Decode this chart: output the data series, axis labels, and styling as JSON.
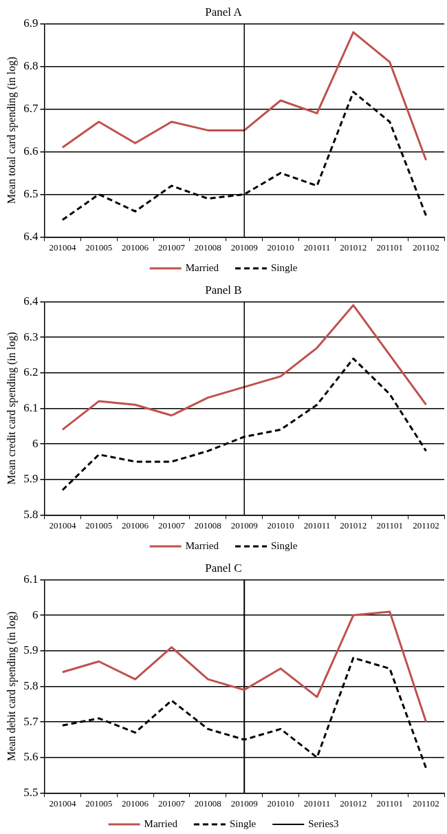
{
  "chart_data": [
    {
      "type": "line",
      "title": "Panel A",
      "ylabel": "Mean total card spending (in log)",
      "categories": [
        "201004",
        "201005",
        "201006",
        "201007",
        "201008",
        "201009",
        "201010",
        "201011",
        "201012",
        "201101",
        "201102"
      ],
      "series": [
        {
          "name": "Married",
          "color": "#c0504d",
          "values": [
            6.61,
            6.67,
            6.62,
            6.67,
            6.65,
            6.65,
            6.72,
            6.69,
            6.88,
            6.81,
            6.58
          ]
        },
        {
          "name": "Single",
          "color": "#000000",
          "line_style": "dashed",
          "values": [
            6.44,
            6.5,
            6.46,
            6.52,
            6.49,
            6.5,
            6.55,
            6.52,
            6.74,
            6.67,
            6.45
          ]
        }
      ],
      "ref_lines": [
        {
          "axis": "x",
          "value": "201009",
          "color": "#000000"
        }
      ],
      "ylim": [
        6.4,
        6.9
      ],
      "yticks": [
        6.4,
        6.5,
        6.6,
        6.7,
        6.8,
        6.9
      ],
      "grid": "y",
      "legend": "bottom",
      "marker": "none"
    },
    {
      "type": "line",
      "title": "Panel B",
      "ylabel": "Mean credit card spending (in log)",
      "categories": [
        "201004",
        "201005",
        "201006",
        "201007",
        "201008",
        "201009",
        "201010",
        "201011",
        "201012",
        "201101",
        "201102"
      ],
      "series": [
        {
          "name": "Married",
          "color": "#c0504d",
          "values": [
            6.04,
            6.12,
            6.11,
            6.08,
            6.13,
            6.16,
            6.19,
            6.27,
            6.39,
            6.25,
            6.11
          ]
        },
        {
          "name": "Single",
          "color": "#000000",
          "line_style": "dashed",
          "values": [
            5.87,
            5.97,
            5.95,
            5.95,
            5.98,
            6.02,
            6.04,
            6.11,
            6.24,
            6.14,
            5.98
          ]
        }
      ],
      "ref_lines": [
        {
          "axis": "x",
          "value": "201009",
          "color": "#000000"
        }
      ],
      "ylim": [
        5.8,
        6.4
      ],
      "yticks": [
        5.8,
        5.9,
        6,
        6.1,
        6.2,
        6.3,
        6.4
      ],
      "grid": "y",
      "legend": "bottom",
      "marker": "none"
    },
    {
      "type": "line",
      "title": "Panel C",
      "ylabel": "Mean debit card spending (in log)",
      "categories": [
        "201004",
        "201005",
        "201006",
        "201007",
        "201008",
        "201009",
        "201010",
        "201011",
        "201012",
        "201101",
        "201102"
      ],
      "series": [
        {
          "name": "Married",
          "color": "#c0504d",
          "values": [
            5.84,
            5.87,
            5.82,
            5.91,
            5.82,
            5.79,
            5.85,
            5.77,
            6.0,
            6.01,
            5.7
          ]
        },
        {
          "name": "Single",
          "color": "#000000",
          "line_style": "dashed",
          "values": [
            5.69,
            5.71,
            5.67,
            5.76,
            5.68,
            5.65,
            5.68,
            5.6,
            5.88,
            5.85,
            5.57
          ]
        },
        {
          "name": "Series3",
          "color": "#000000",
          "line_style": "solid",
          "x": [
            "201009",
            "201009"
          ],
          "values": [
            5.5,
            6.1
          ]
        }
      ],
      "ylim": [
        5.5,
        6.1
      ],
      "yticks": [
        5.5,
        5.6,
        5.7,
        5.8,
        5.9,
        6,
        6.1
      ],
      "grid": "y",
      "legend": "bottom",
      "marker": "none"
    }
  ]
}
